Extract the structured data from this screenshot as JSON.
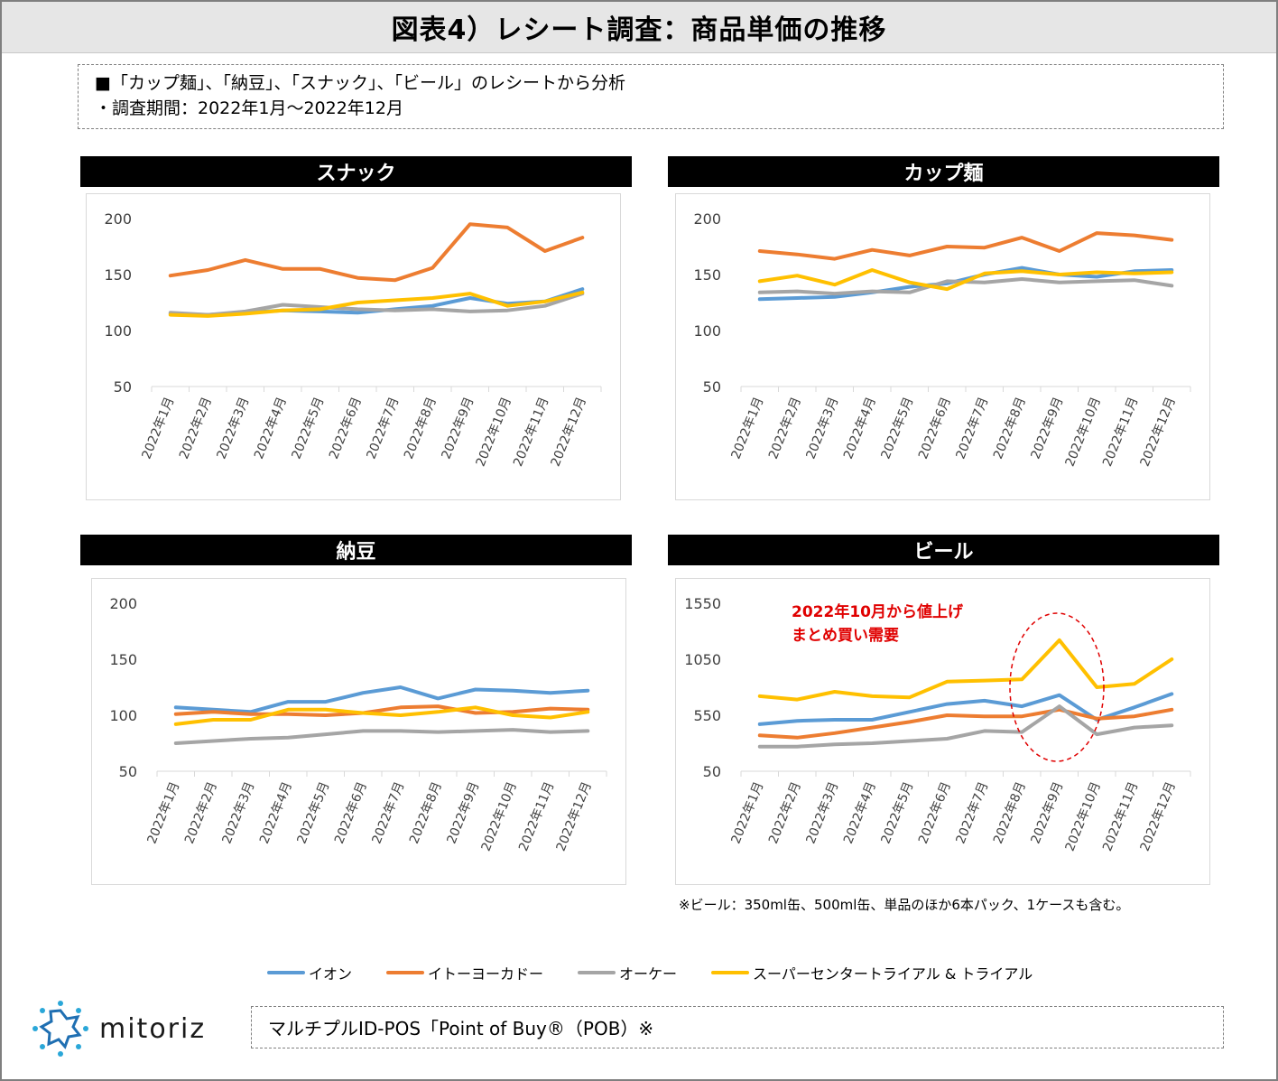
{
  "page": {
    "title": "図表4）レシート調査：商品単価の推移",
    "note_line1": "■「カップ麺」、「納豆」、「スナック」、「ビール」のレシートから分析",
    "note_line2": "・調査期間：2022年1月～2022年12月",
    "footnote": "※ビール：350ml缶、500ml缶、単品のほか6本パック、1ケースも含む。",
    "brand": "mitoriz",
    "source": "マルチプルID-POS「Point of Buy®（POB）※",
    "annotation_line1": "2022年10月から値上げ",
    "annotation_line2": "まとめ買い需要"
  },
  "legend": [
    {
      "name": "イオン",
      "color": "#5b9bd5"
    },
    {
      "name": "イトーヨーカドー",
      "color": "#ed7d31"
    },
    {
      "name": "オーケー",
      "color": "#a5a5a5"
    },
    {
      "name": "スーパーセンタートライアル & トライアル",
      "color": "#ffc000"
    }
  ],
  "chart_data": [
    {
      "type": "line",
      "title": "スナック",
      "x": [
        "2022年1月",
        "2022年2月",
        "2022年3月",
        "2022年4月",
        "2022年5月",
        "2022年6月",
        "2022年7月",
        "2022年8月",
        "2022年9月",
        "2022年10月",
        "2022年11月",
        "2022年12月"
      ],
      "yticks": [
        "200",
        "150",
        "100",
        "50"
      ],
      "ylim": [
        50,
        200
      ],
      "series": [
        {
          "name": "イオン",
          "color": "#5b9bd5",
          "values": [
            115,
            114,
            116,
            118,
            117,
            116,
            119,
            122,
            129,
            124,
            126,
            137
          ]
        },
        {
          "name": "イトーヨーカドー",
          "color": "#ed7d31",
          "values": [
            149,
            154,
            163,
            155,
            155,
            147,
            145,
            156,
            195,
            192,
            171,
            183
          ]
        },
        {
          "name": "オーケー",
          "color": "#a5a5a5",
          "values": [
            116,
            114,
            117,
            123,
            121,
            119,
            118,
            119,
            117,
            118,
            122,
            133
          ]
        },
        {
          "name": "スーパーセンタートライアル & トライアル",
          "color": "#ffc000",
          "values": [
            114,
            113,
            115,
            118,
            119,
            125,
            127,
            129,
            133,
            122,
            126,
            134
          ]
        }
      ]
    },
    {
      "type": "line",
      "title": "カップ麺",
      "x": [
        "2022年1月",
        "2022年2月",
        "2022年3月",
        "2022年4月",
        "2022年5月",
        "2022年6月",
        "2022年7月",
        "2022年8月",
        "2022年9月",
        "2022年10月",
        "2022年11月",
        "2022年12月"
      ],
      "yticks": [
        "200",
        "150",
        "100",
        "50"
      ],
      "ylim": [
        50,
        200
      ],
      "series": [
        {
          "name": "イオン",
          "color": "#5b9bd5",
          "values": [
            128,
            129,
            130,
            134,
            139,
            142,
            150,
            156,
            150,
            148,
            153,
            154
          ]
        },
        {
          "name": "イトーヨーカドー",
          "color": "#ed7d31",
          "values": [
            171,
            168,
            164,
            172,
            167,
            175,
            174,
            183,
            171,
            187,
            185,
            181
          ]
        },
        {
          "name": "オーケー",
          "color": "#a5a5a5",
          "values": [
            134,
            135,
            133,
            135,
            134,
            144,
            143,
            146,
            143,
            144,
            145,
            140
          ]
        },
        {
          "name": "スーパーセンタートライアル & トライアル",
          "color": "#ffc000",
          "values": [
            144,
            149,
            141,
            154,
            143,
            137,
            151,
            153,
            150,
            152,
            151,
            152
          ]
        }
      ]
    },
    {
      "type": "line",
      "title": "納豆",
      "x": [
        "2022年1月",
        "2022年2月",
        "2022年3月",
        "2022年4月",
        "2022年5月",
        "2022年6月",
        "2022年7月",
        "2022年8月",
        "2022年9月",
        "2022年10月",
        "2022年11月",
        "2022年12月"
      ],
      "yticks": [
        "200",
        "150",
        "100",
        "50"
      ],
      "ylim": [
        50,
        200
      ],
      "series": [
        {
          "name": "イオン",
          "color": "#5b9bd5",
          "values": [
            107,
            105,
            103,
            112,
            112,
            120,
            125,
            115,
            123,
            122,
            120,
            122
          ]
        },
        {
          "name": "イトーヨーカドー",
          "color": "#ed7d31",
          "values": [
            101,
            103,
            101,
            101,
            100,
            102,
            107,
            108,
            102,
            103,
            106,
            105
          ]
        },
        {
          "name": "オーケー",
          "color": "#a5a5a5",
          "values": [
            75,
            77,
            79,
            80,
            83,
            86,
            86,
            85,
            86,
            87,
            85,
            86
          ]
        },
        {
          "name": "スーパーセンタートライアル & トライアル",
          "color": "#ffc000",
          "values": [
            92,
            96,
            96,
            105,
            105,
            102,
            100,
            103,
            107,
            100,
            98,
            103
          ]
        }
      ]
    },
    {
      "type": "line",
      "title": "ビール",
      "x": [
        "2022年1月",
        "2022年2月",
        "2022年3月",
        "2022年4月",
        "2022年5月",
        "2022年6月",
        "2022年7月",
        "2022年8月",
        "2022年9月",
        "2022年10月",
        "2022年11月",
        "2022年12月"
      ],
      "yticks": [
        "1550",
        "1050",
        "550",
        "50"
      ],
      "ylim": [
        50,
        1550
      ],
      "series": [
        {
          "name": "イオン",
          "color": "#5b9bd5",
          "values": [
            470,
            500,
            510,
            510,
            580,
            650,
            680,
            630,
            730,
            510,
            620,
            740
          ]
        },
        {
          "name": "イトーヨーカドー",
          "color": "#ed7d31",
          "values": [
            370,
            350,
            390,
            440,
            490,
            550,
            540,
            540,
            600,
            520,
            540,
            600
          ]
        },
        {
          "name": "オーケー",
          "color": "#a5a5a5",
          "values": [
            270,
            270,
            290,
            300,
            320,
            340,
            410,
            400,
            630,
            380,
            440,
            460
          ]
        },
        {
          "name": "スーパーセンタートライアル & トライアル",
          "color": "#ffc000",
          "values": [
            720,
            690,
            760,
            720,
            710,
            850,
            860,
            870,
            1220,
            800,
            830,
            1050
          ]
        }
      ]
    }
  ]
}
